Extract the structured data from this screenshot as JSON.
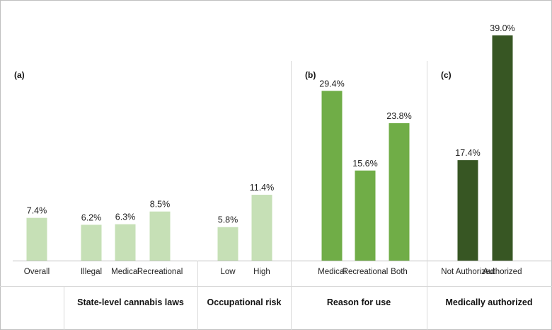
{
  "chart_data": {
    "type": "bar",
    "ylim": [
      0,
      42
    ],
    "colors": {
      "light": "#c6e0b6",
      "medium": "#70ad47",
      "dark": "#375623"
    },
    "panels": [
      {
        "label": "(a)",
        "groups": [
          0,
          1,
          2
        ]
      },
      {
        "label": "(b)",
        "groups": [
          3
        ]
      },
      {
        "label": "(c)",
        "groups": [
          4
        ]
      }
    ],
    "groups": [
      {
        "name": "",
        "color": "light",
        "bars": [
          {
            "category": "Overall",
            "value": 7.4,
            "label": "7.4%"
          }
        ]
      },
      {
        "name": "State-level cannabis laws",
        "color": "light",
        "bars": [
          {
            "category": "Illegal",
            "value": 6.2,
            "label": "6.2%"
          },
          {
            "category": "Medical",
            "value": 6.3,
            "label": "6.3%"
          },
          {
            "category": "Recreational",
            "value": 8.5,
            "label": "8.5%"
          }
        ]
      },
      {
        "name": "Occupational risk",
        "color": "light",
        "bars": [
          {
            "category": "Low",
            "value": 5.8,
            "label": "5.8%"
          },
          {
            "category": "High",
            "value": 11.4,
            "label": "11.4%"
          }
        ]
      },
      {
        "name": "Reason for use",
        "color": "medium",
        "bars": [
          {
            "category": "Medical",
            "value": 29.4,
            "label": "29.4%"
          },
          {
            "category": "Recreational",
            "value": 15.6,
            "label": "15.6%"
          },
          {
            "category": "Both",
            "value": 23.8,
            "label": "23.8%"
          }
        ]
      },
      {
        "name": "Medically authorized",
        "color": "dark",
        "bars": [
          {
            "category": "Not Authorized",
            "value": 17.4,
            "label": "17.4%"
          },
          {
            "category": "Authorized",
            "value": 39.0,
            "label": "39.0%"
          }
        ]
      }
    ]
  }
}
